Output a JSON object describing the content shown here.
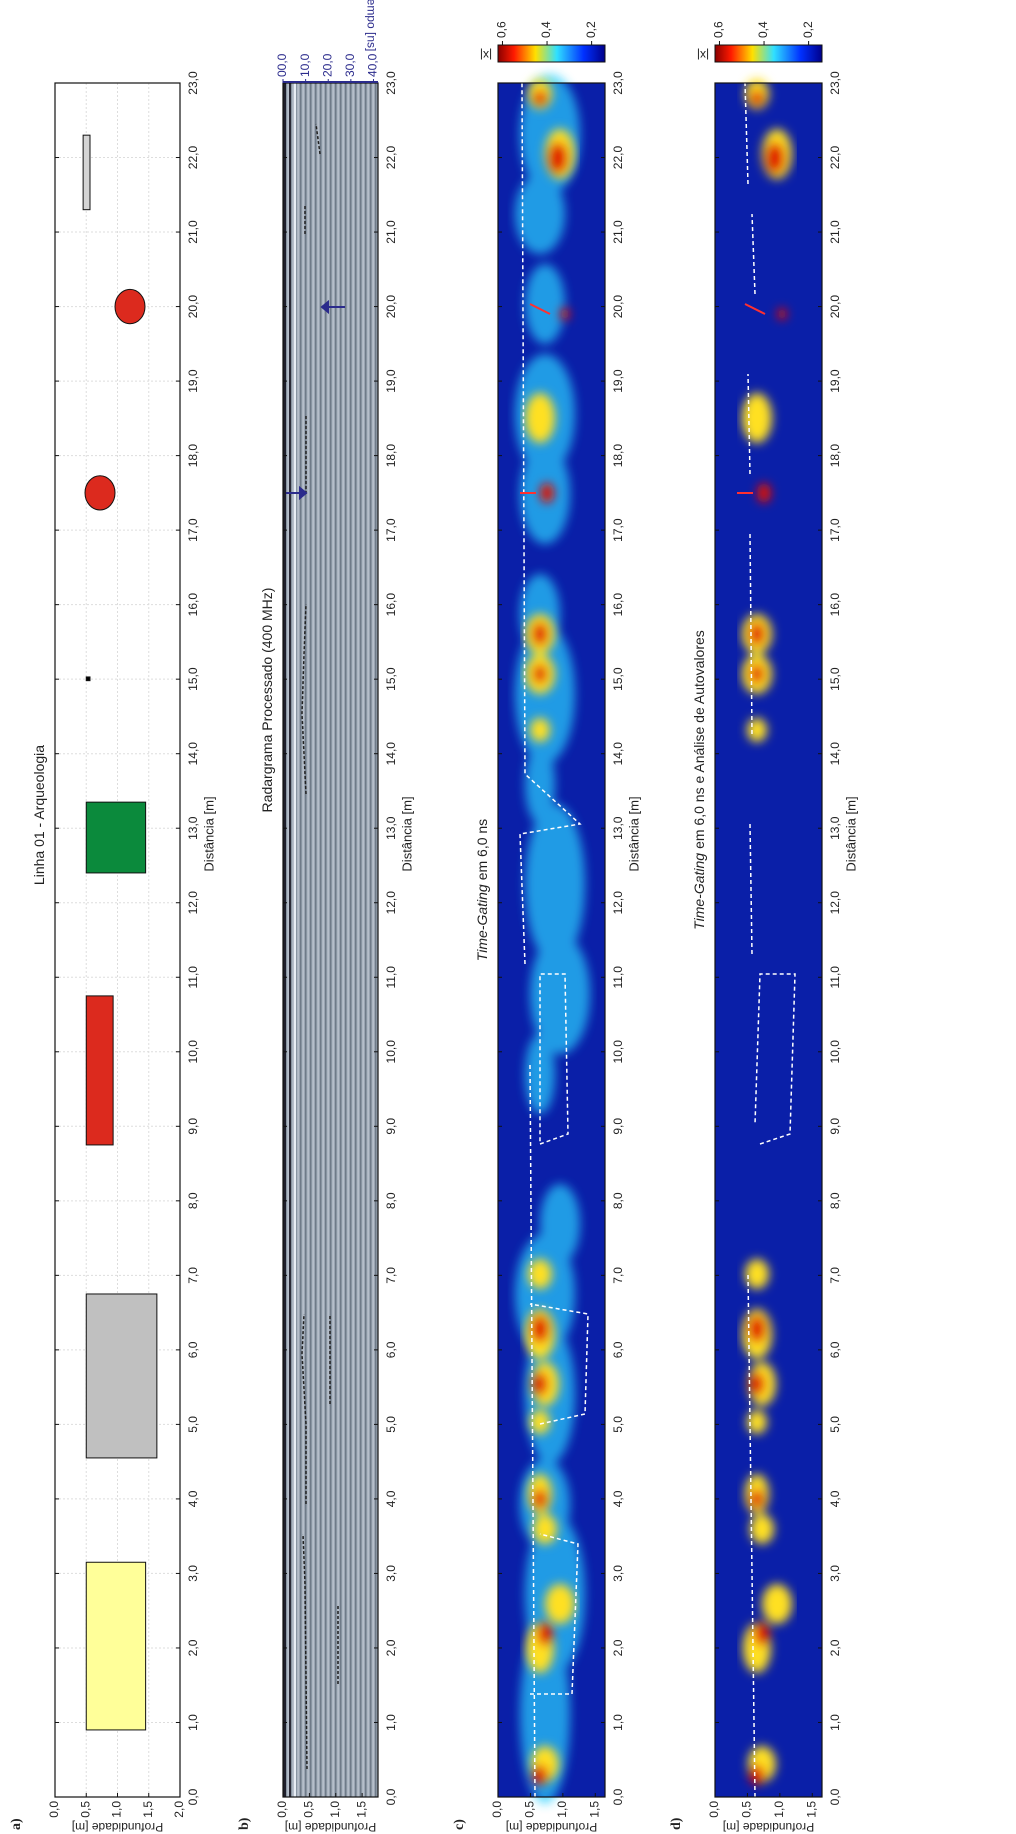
{
  "distance_axis": {
    "label": "Distância [m]",
    "lim": [
      0,
      23
    ],
    "ticks": [
      {
        "value": 0,
        "label": "0,0"
      },
      {
        "value": 1,
        "label": "1,0"
      },
      {
        "value": 2,
        "label": "2,0"
      },
      {
        "value": 3,
        "label": "3,0"
      },
      {
        "value": 4,
        "label": "4,0"
      },
      {
        "value": 5,
        "label": "5,0"
      },
      {
        "value": 6,
        "label": "6,0"
      },
      {
        "value": 7,
        "label": "7,0"
      },
      {
        "value": 8,
        "label": "8,0"
      },
      {
        "value": 9,
        "label": "9,0"
      },
      {
        "value": 10,
        "label": "10,0"
      },
      {
        "value": 11,
        "label": "11,0"
      },
      {
        "value": 12,
        "label": "12,0"
      },
      {
        "value": 13,
        "label": "13,0"
      },
      {
        "value": 14,
        "label": "14,0"
      },
      {
        "value": 15,
        "label": "15,0"
      },
      {
        "value": 16,
        "label": "16,0"
      },
      {
        "value": 17,
        "label": "17,0"
      },
      {
        "value": 18,
        "label": "18,0"
      },
      {
        "value": 19,
        "label": "19,0"
      },
      {
        "value": 20,
        "label": "20,0"
      },
      {
        "value": 21,
        "label": "21,0"
      },
      {
        "value": 22,
        "label": "22,0"
      },
      {
        "value": 23,
        "label": "23,0"
      }
    ]
  },
  "panels": [
    {
      "label": "a)",
      "title": "Linha 01 - Arqueologia",
      "ylabel": "Profundidade [m]",
      "ylim": [
        0,
        2
      ],
      "grid": true,
      "yticks": [
        {
          "value": 0,
          "label": "0,0"
        },
        {
          "value": 0.5,
          "label": "0,5"
        },
        {
          "value": 1,
          "label": "1,0"
        },
        {
          "value": 1.5,
          "label": "1,5"
        },
        {
          "value": 2,
          "label": "2,0"
        }
      ],
      "objects": [
        {
          "shape": "rect",
          "x": [
            0.9,
            3.15
          ],
          "y": [
            0.5,
            1.45
          ],
          "color": "#ffff99"
        },
        {
          "shape": "rect",
          "x": [
            4.55,
            6.75
          ],
          "y": [
            0.5,
            1.63
          ],
          "color": "#c0c0c0"
        },
        {
          "shape": "rect",
          "x": [
            8.75,
            10.75
          ],
          "y": [
            0.5,
            0.93
          ],
          "color": "#dc2a1e"
        },
        {
          "shape": "rect",
          "x": [
            12.4,
            13.35
          ],
          "y": [
            0.5,
            1.45
          ],
          "color": "#0b8a3c"
        },
        {
          "shape": "rect",
          "x": [
            14.98,
            15.03
          ],
          "y": [
            0.5,
            0.56
          ],
          "color": "#000000"
        },
        {
          "shape": "ellipse",
          "x": [
            17.27,
            17.73
          ],
          "y": [
            0.48,
            0.96
          ],
          "color": "#dc2a1e"
        },
        {
          "shape": "ellipse",
          "x": [
            19.77,
            20.23
          ],
          "y": [
            0.96,
            1.44
          ],
          "color": "#dc2a1e"
        },
        {
          "shape": "rect",
          "x": [
            21.3,
            22.3
          ],
          "y": [
            0.45,
            0.56
          ],
          "color": "#d4d4d4"
        }
      ]
    },
    {
      "label": "b)",
      "title": "Radargrama Processado (400 MHz)",
      "ylabel": "Profundidade [m]",
      "ylim": [
        0,
        1.8
      ],
      "yticks": [
        {
          "value": 0,
          "label": "0,0"
        },
        {
          "value": 0.5,
          "label": "0,5"
        },
        {
          "value": 1,
          "label": "1,0"
        },
        {
          "value": 1.5,
          "label": "1,5"
        }
      ],
      "time_axis": {
        "label": "Tempo [ns]",
        "lim": [
          0,
          42
        ],
        "color": "#2b2b8c",
        "ticks": [
          {
            "value": 0,
            "label": "00,0"
          },
          {
            "value": 10,
            "label": "10,0"
          },
          {
            "value": 20,
            "label": "20,0"
          },
          {
            "value": 30,
            "label": "30,0"
          },
          {
            "value": 40,
            "label": "40,0"
          }
        ]
      }
    },
    {
      "label": "c)",
      "title_italic": "Time-Gating",
      "title": "em 6,0 ns",
      "ylabel": "Profundidade [m]",
      "ylim": [
        0,
        1.65
      ],
      "yticks": [
        {
          "value": 0,
          "label": "0,0"
        },
        {
          "value": 0.5,
          "label": "0,5"
        },
        {
          "value": 1,
          "label": "1,0"
        },
        {
          "value": 1.5,
          "label": "1,5"
        }
      ],
      "colorbar": {
        "label": "|x|",
        "lim": [
          0.62,
          0.14
        ],
        "ticks": [
          {
            "value": 0.6,
            "label": "0,6"
          },
          {
            "value": 0.4,
            "label": "0,4"
          },
          {
            "value": 0.2,
            "label": "0,2"
          }
        ]
      }
    },
    {
      "label": "d)",
      "title_italic": "Time-Gating",
      "title": "em 6,0 ns e Análise de Autovalores",
      "ylabel": "Profundidade [m]",
      "ylim": [
        0,
        1.65
      ],
      "yticks": [
        {
          "value": 0,
          "label": "0,0"
        },
        {
          "value": 0.5,
          "label": "0,5"
        },
        {
          "value": 1,
          "label": "1,0"
        },
        {
          "value": 1.5,
          "label": "1,5"
        }
      ],
      "colorbar": {
        "label": "|x|",
        "lim": [
          0.62,
          0.14
        ],
        "ticks": [
          {
            "value": 0.6,
            "label": "0,6"
          },
          {
            "value": 0.4,
            "label": "0,4"
          },
          {
            "value": 0.2,
            "label": "0,2"
          }
        ]
      }
    }
  ]
}
